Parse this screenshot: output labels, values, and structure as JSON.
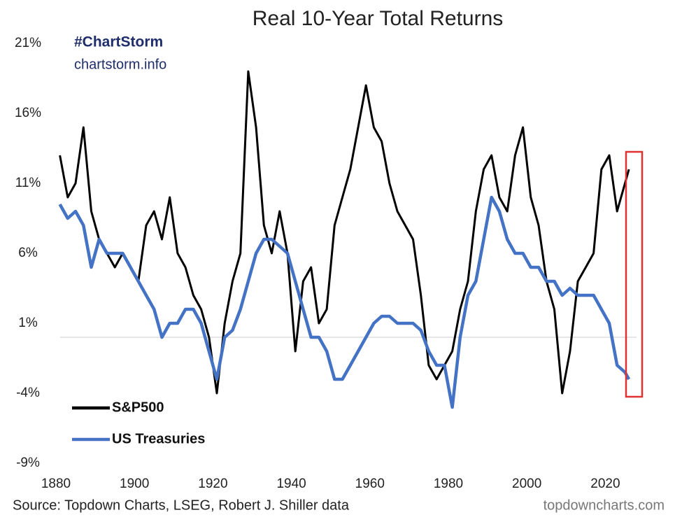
{
  "chart_data": {
    "type": "line",
    "title": "Real 10-Year Total Returns",
    "brand_tag": "#ChartStorm",
    "brand_site": "chartstorm.info",
    "source": "Source: Topdown Charts, LSEG, Robert J. Shiller data",
    "watermark": "topdowncharts.com",
    "legend": "lower left",
    "x": [
      1881,
      1883,
      1885,
      1887,
      1889,
      1891,
      1893,
      1895,
      1897,
      1899,
      1901,
      1903,
      1905,
      1907,
      1909,
      1911,
      1913,
      1915,
      1917,
      1919,
      1921,
      1923,
      1925,
      1927,
      1929,
      1931,
      1933,
      1935,
      1937,
      1939,
      1941,
      1943,
      1945,
      1947,
      1949,
      1951,
      1953,
      1955,
      1957,
      1959,
      1961,
      1963,
      1965,
      1967,
      1969,
      1971,
      1973,
      1975,
      1977,
      1979,
      1981,
      1983,
      1985,
      1987,
      1989,
      1991,
      1993,
      1995,
      1997,
      1999,
      2001,
      2003,
      2005,
      2007,
      2009,
      2011,
      2013,
      2015,
      2017,
      2019,
      2021,
      2023,
      2025,
      2026
    ],
    "series": [
      {
        "name": "S&P500",
        "color": "#000000",
        "values": [
          13,
          10,
          11,
          15,
          9,
          7,
          6,
          5,
          6,
          5,
          4,
          8,
          9,
          7,
          10,
          6,
          5,
          3,
          2,
          0,
          -4,
          1,
          4,
          6,
          19,
          15,
          8,
          6,
          9,
          6,
          -1,
          4,
          5,
          1,
          2,
          8,
          10,
          12,
          15,
          18,
          15,
          14,
          11,
          9,
          8,
          7,
          3,
          -2,
          -3,
          -2,
          -1,
          2,
          4,
          9,
          12,
          13,
          10,
          9,
          13,
          15,
          10,
          8,
          4,
          2,
          -4,
          -1,
          4,
          5,
          6,
          12,
          13,
          9,
          11,
          12
        ]
      },
      {
        "name": "US Treasuries",
        "color": "#4472c4",
        "values": [
          9.5,
          8.5,
          9,
          8,
          5,
          7,
          6,
          6,
          6,
          5,
          4,
          3,
          2,
          0,
          1,
          1,
          2,
          2,
          1,
          -1,
          -3,
          0,
          0.5,
          2,
          4,
          6,
          7,
          7,
          6.5,
          6,
          4,
          2,
          0,
          0,
          -1,
          -3,
          -3,
          -2,
          -1,
          0,
          1,
          1.5,
          1.5,
          1,
          1,
          1,
          0.5,
          -1,
          -2,
          -2,
          -5,
          0,
          3,
          4,
          7,
          10,
          9,
          7,
          6,
          6,
          5,
          5,
          4,
          4,
          3,
          3.5,
          3,
          3,
          3,
          2,
          1,
          -2,
          -2.5,
          -3
        ]
      }
    ],
    "xlim": [
      1880,
      2030
    ],
    "xticks": [
      1880,
      1900,
      1920,
      1940,
      1960,
      1980,
      2000,
      2020
    ],
    "ylim": [
      -9,
      21
    ],
    "yticks": [
      {
        "value": -9,
        "label": "-9%"
      },
      {
        "value": -4,
        "label": "-4%"
      },
      {
        "value": 1,
        "label": "1%"
      },
      {
        "value": 6,
        "label": "6%"
      },
      {
        "value": 11,
        "label": "11%"
      },
      {
        "value": 16,
        "label": "16%"
      },
      {
        "value": 21,
        "label": "21%"
      }
    ]
  }
}
